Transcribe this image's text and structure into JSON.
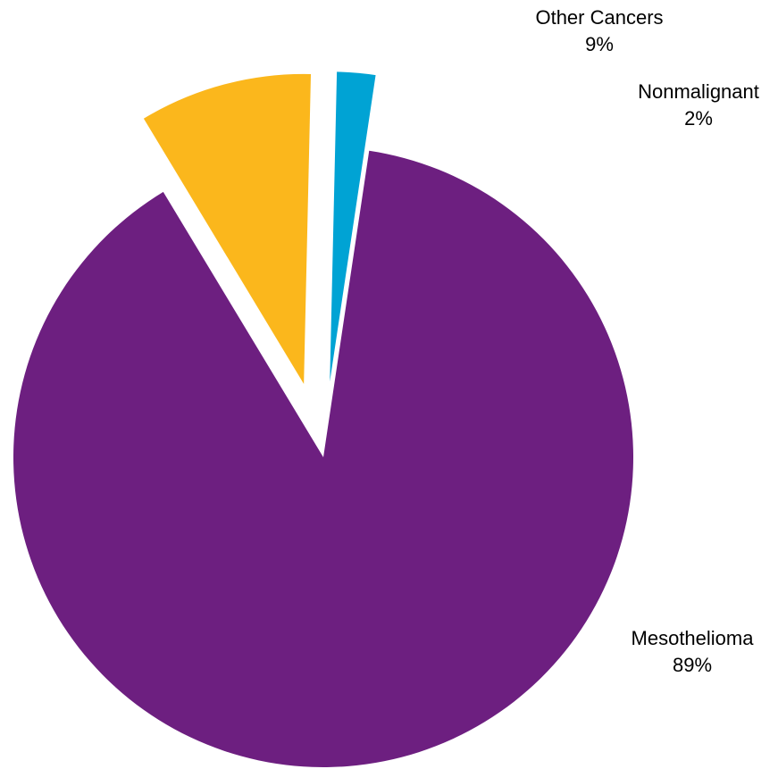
{
  "chart_data": {
    "type": "pie",
    "start_angle_deg": 8.5,
    "direction": "clockwise",
    "slices": [
      {
        "label": "Mesothelioma",
        "value": 89,
        "value_label": "89%",
        "color": "#6D1F80",
        "exploded": false
      },
      {
        "label": "Other Cancers",
        "value": 9,
        "value_label": "9%",
        "color": "#FBB71C",
        "exploded": true
      },
      {
        "label": "Nonmalignant",
        "value": 2,
        "value_label": "2%",
        "color": "#00A3D4",
        "exploded": true
      }
    ]
  }
}
